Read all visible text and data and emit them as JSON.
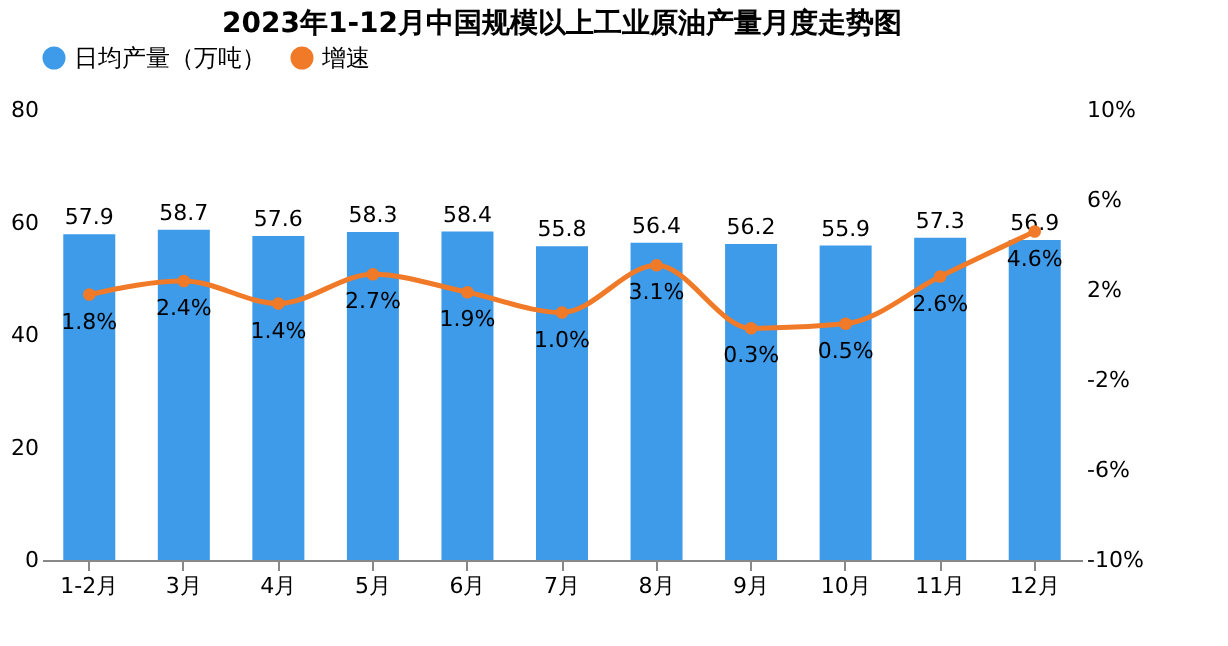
{
  "chart_data": {
    "type": "bar",
    "title": "2023年1-12月中国规模以上工业原油产量月度走势图",
    "categories": [
      "1-2月",
      "3月",
      "4月",
      "5月",
      "6月",
      "7月",
      "8月",
      "9月",
      "10月",
      "11月",
      "12月"
    ],
    "series": [
      {
        "name": "日均产量（万吨）",
        "color": "#3d9be9",
        "values": [
          57.9,
          58.7,
          57.6,
          58.3,
          58.4,
          55.8,
          56.4,
          56.2,
          55.9,
          57.3,
          56.9
        ],
        "value_labels": [
          "57.9",
          "58.7",
          "57.6",
          "58.3",
          "58.4",
          "55.8",
          "56.4",
          "56.2",
          "55.9",
          "57.3",
          "56.9"
        ]
      },
      {
        "name": "增速",
        "type": "line",
        "axis": "y2",
        "color": "#f07a28",
        "marker": "circle",
        "values": [
          1.8,
          2.4,
          1.4,
          2.7,
          1.9,
          1.0,
          3.1,
          0.3,
          0.5,
          2.6,
          4.6
        ],
        "value_labels": [
          "1.8%",
          "2.4%",
          "1.4%",
          "2.7%",
          "1.9%",
          "1.0%",
          "3.1%",
          "0.3%",
          "0.5%",
          "2.6%",
          "4.6%"
        ]
      }
    ],
    "ylim": [
      0,
      80
    ],
    "yticks": [
      0,
      20,
      40,
      60,
      80
    ],
    "y2lim": [
      -10,
      10
    ],
    "y2ticks": [
      {
        "value": -10,
        "label": "-10%"
      },
      {
        "value": -6,
        "label": "-6%"
      },
      {
        "value": -2,
        "label": "-2%"
      },
      {
        "value": 2,
        "label": "2%"
      },
      {
        "value": 6,
        "label": "6%"
      },
      {
        "value": 10,
        "label": "10%"
      }
    ],
    "legend": "top",
    "grid": false
  }
}
